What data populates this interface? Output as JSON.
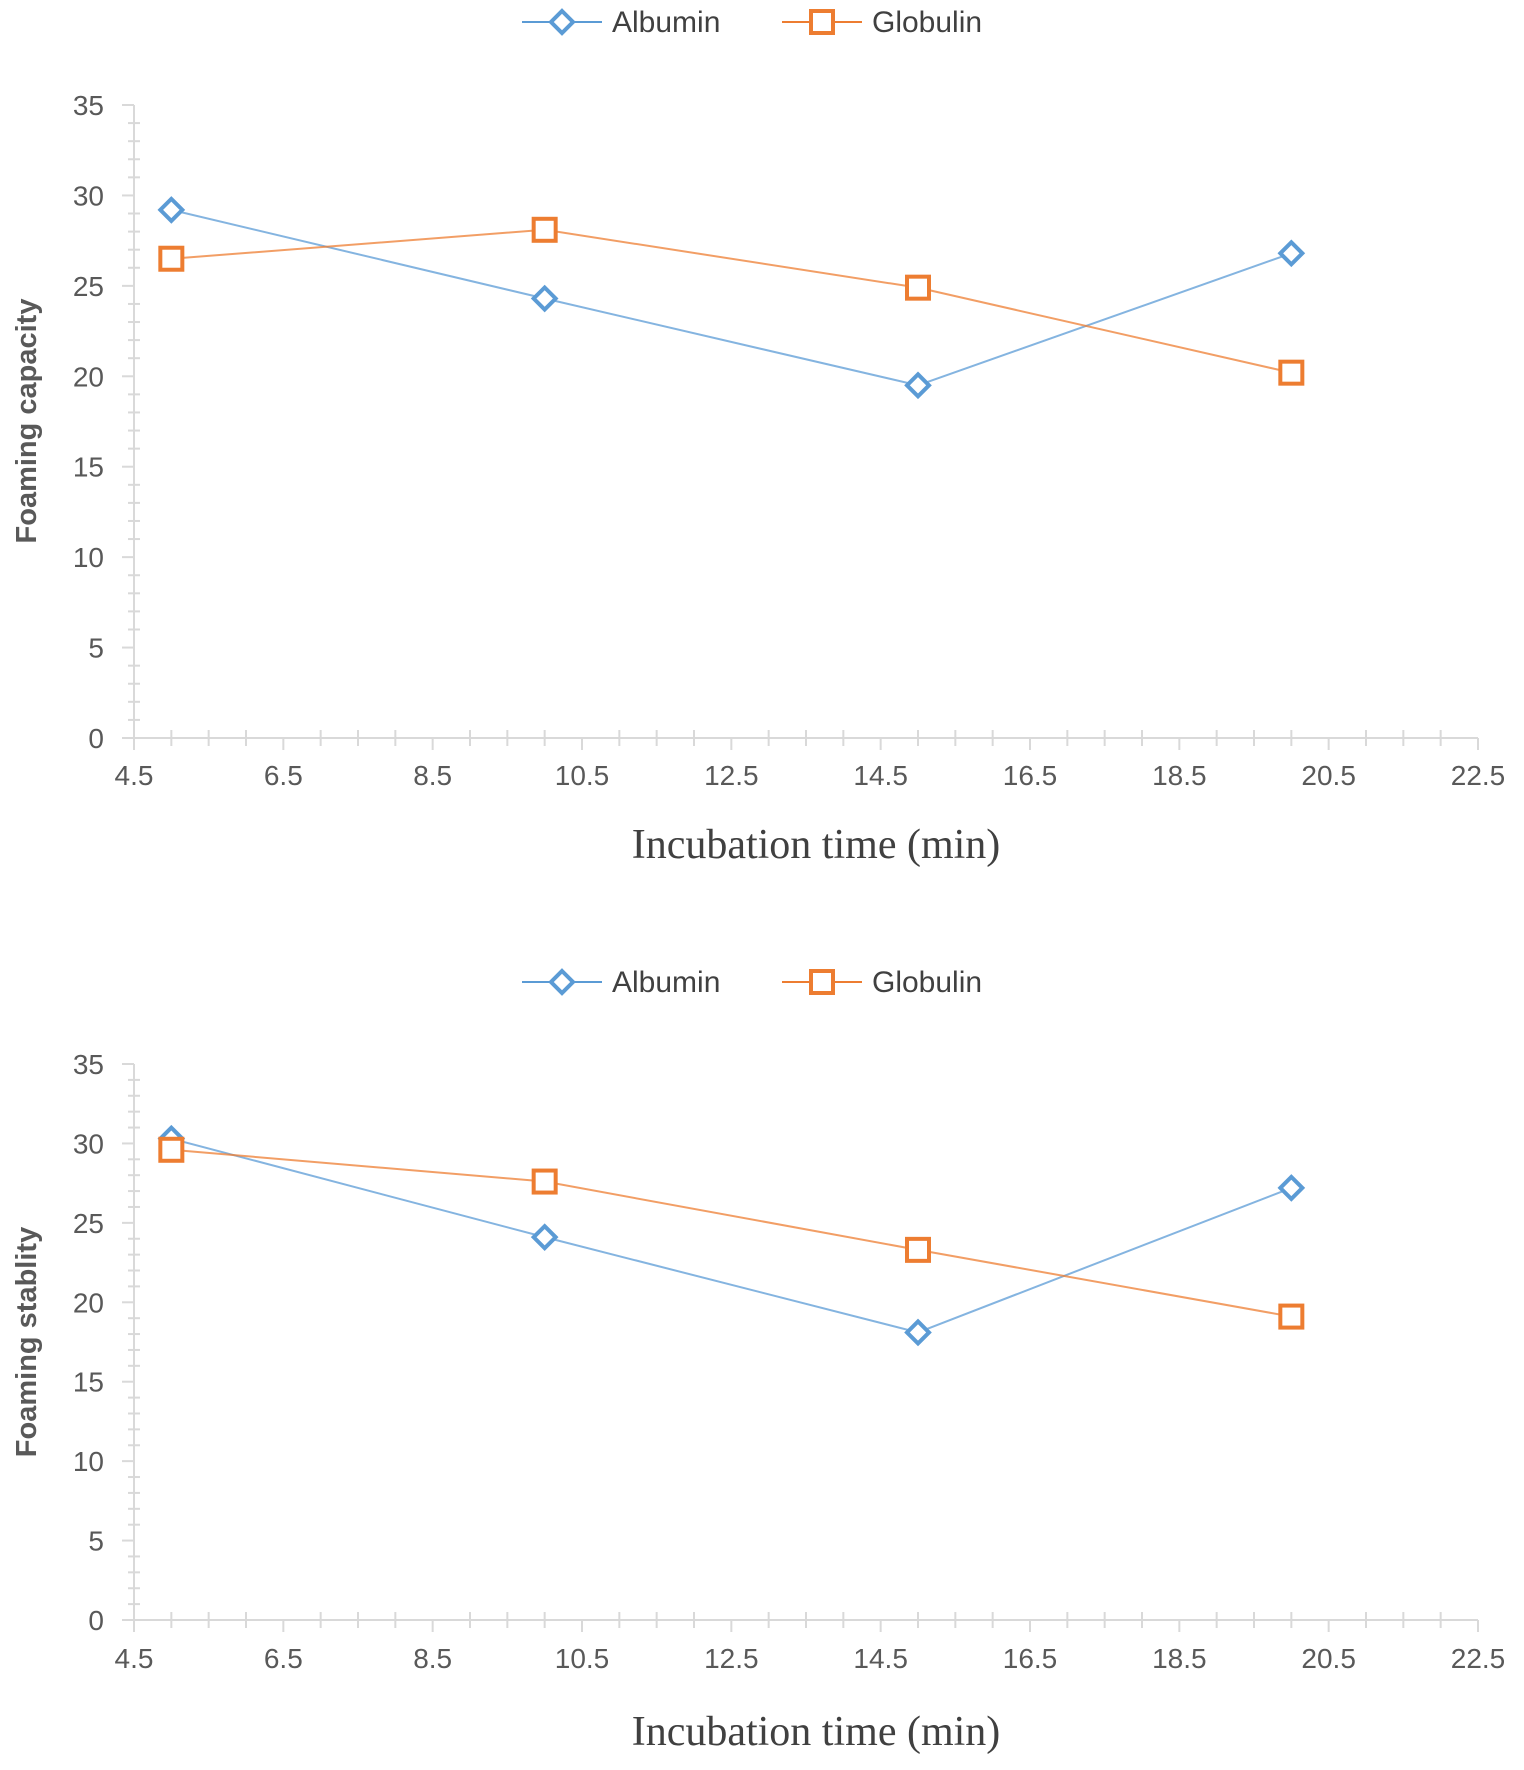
{
  "colors": {
    "albumin": "#5b9bd5",
    "globulin": "#ed7d31",
    "axis": "#d9d9d9",
    "text": "#595959"
  },
  "chart_data": [
    {
      "type": "scatter",
      "title": "",
      "xlabel": "Incubation time (min)",
      "ylabel": "Foaming capacity",
      "xlim": [
        4.5,
        22.5
      ],
      "ylim": [
        0,
        35
      ],
      "xticks": [
        "4.5",
        "6.5",
        "8.5",
        "10.5",
        "12.5",
        "14.5",
        "16.5",
        "18.5",
        "20.5",
        "22.5"
      ],
      "yticks": [
        "0",
        "5",
        "10",
        "15",
        "20",
        "25",
        "30",
        "35"
      ],
      "legend": "top-center",
      "series": [
        {
          "name": "Albumin",
          "marker": "diamond",
          "x": [
            5,
            10,
            15,
            20
          ],
          "y": [
            29.2,
            24.3,
            19.5,
            26.8
          ]
        },
        {
          "name": "Globulin",
          "marker": "square",
          "x": [
            5,
            10,
            15,
            20
          ],
          "y": [
            26.5,
            28.1,
            24.9,
            20.2
          ]
        }
      ]
    },
    {
      "type": "scatter",
      "title": "",
      "xlabel": "Incubation time (min)",
      "ylabel": "Foaming stablity",
      "xlim": [
        4.5,
        22.5
      ],
      "ylim": [
        0,
        35
      ],
      "xticks": [
        "4.5",
        "6.5",
        "8.5",
        "10.5",
        "12.5",
        "14.5",
        "16.5",
        "18.5",
        "20.5",
        "22.5"
      ],
      "yticks": [
        "0",
        "5",
        "10",
        "15",
        "20",
        "25",
        "30",
        "35"
      ],
      "legend": "top-center",
      "series": [
        {
          "name": "Albumin",
          "marker": "diamond",
          "x": [
            5,
            10,
            15,
            20
          ],
          "y": [
            30.3,
            24.1,
            18.1,
            27.2
          ]
        },
        {
          "name": "Globulin",
          "marker": "square",
          "x": [
            5,
            10,
            15,
            20
          ],
          "y": [
            29.6,
            27.6,
            23.3,
            19.1
          ]
        }
      ]
    }
  ]
}
